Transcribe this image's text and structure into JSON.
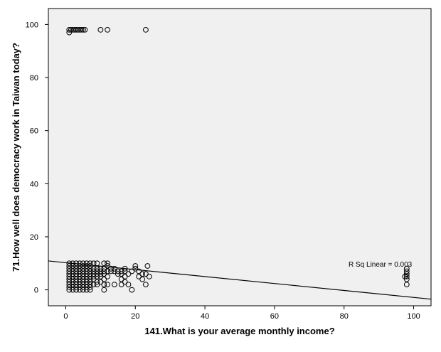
{
  "chart_data": {
    "type": "scatter",
    "xlabel": "141.What is your average monthly income?",
    "ylabel": "71.How well does democracy work in Taiwan today?",
    "xlim": [
      -5,
      105
    ],
    "ylim": [
      -6,
      106
    ],
    "x_ticks": [
      0,
      20,
      40,
      60,
      80,
      100
    ],
    "y_ticks": [
      0,
      20,
      40,
      60,
      80,
      100
    ],
    "grid": false,
    "legend": "none",
    "plot_background": "#f0f0f0",
    "marker_color": "#000000",
    "fit_line": {
      "x": [
        -5,
        105
      ],
      "y": [
        10.9,
        -3.5
      ]
    },
    "annotation": "R Sq Linear = 0.003",
    "points": [
      [
        1,
        98
      ],
      [
        1,
        97
      ],
      [
        1.5,
        98
      ],
      [
        2,
        98
      ],
      [
        2.5,
        98
      ],
      [
        3,
        98
      ],
      [
        3.5,
        98
      ],
      [
        4,
        98
      ],
      [
        4.5,
        98
      ],
      [
        5,
        98
      ],
      [
        5.5,
        98
      ],
      [
        10,
        98
      ],
      [
        12,
        98
      ],
      [
        23,
        98
      ],
      [
        1,
        0
      ],
      [
        1,
        1
      ],
      [
        1,
        2
      ],
      [
        1,
        3
      ],
      [
        1,
        4
      ],
      [
        1,
        5
      ],
      [
        1,
        6
      ],
      [
        1,
        7
      ],
      [
        1,
        8
      ],
      [
        1,
        9
      ],
      [
        1,
        10
      ],
      [
        2,
        0
      ],
      [
        2,
        1
      ],
      [
        2,
        2
      ],
      [
        2,
        3
      ],
      [
        2,
        4
      ],
      [
        2,
        5
      ],
      [
        2,
        6
      ],
      [
        2,
        7
      ],
      [
        2,
        8
      ],
      [
        2,
        9
      ],
      [
        2,
        10
      ],
      [
        3,
        0
      ],
      [
        3,
        1
      ],
      [
        3,
        2
      ],
      [
        3,
        3
      ],
      [
        3,
        4
      ],
      [
        3,
        5
      ],
      [
        3,
        6
      ],
      [
        3,
        7
      ],
      [
        3,
        8
      ],
      [
        3,
        9
      ],
      [
        3,
        10
      ],
      [
        4,
        0
      ],
      [
        4,
        1
      ],
      [
        4,
        2
      ],
      [
        4,
        3
      ],
      [
        4,
        4
      ],
      [
        4,
        5
      ],
      [
        4,
        6
      ],
      [
        4,
        7
      ],
      [
        4,
        8
      ],
      [
        4,
        9
      ],
      [
        4,
        10
      ],
      [
        5,
        0
      ],
      [
        5,
        1
      ],
      [
        5,
        2
      ],
      [
        5,
        3
      ],
      [
        5,
        4
      ],
      [
        5,
        5
      ],
      [
        5,
        6
      ],
      [
        5,
        7
      ],
      [
        5,
        8
      ],
      [
        5,
        9
      ],
      [
        5,
        10
      ],
      [
        6,
        0
      ],
      [
        6,
        1
      ],
      [
        6,
        2
      ],
      [
        6,
        3
      ],
      [
        6,
        4
      ],
      [
        6,
        5
      ],
      [
        6,
        6
      ],
      [
        6,
        7
      ],
      [
        6,
        8
      ],
      [
        6,
        9
      ],
      [
        6,
        10
      ],
      [
        7,
        0
      ],
      [
        7,
        1
      ],
      [
        7,
        2
      ],
      [
        7,
        3
      ],
      [
        7,
        4
      ],
      [
        7,
        5
      ],
      [
        7,
        6
      ],
      [
        7,
        7
      ],
      [
        7,
        8
      ],
      [
        7,
        9
      ],
      [
        7,
        10
      ],
      [
        8,
        2
      ],
      [
        8,
        4
      ],
      [
        8,
        5
      ],
      [
        8,
        6
      ],
      [
        8,
        7
      ],
      [
        8,
        8
      ],
      [
        8,
        10
      ],
      [
        9,
        2
      ],
      [
        9,
        3
      ],
      [
        9,
        5
      ],
      [
        9,
        6
      ],
      [
        9,
        7
      ],
      [
        9,
        8
      ],
      [
        9,
        10
      ],
      [
        10,
        3
      ],
      [
        10,
        5
      ],
      [
        10,
        6
      ],
      [
        10,
        7
      ],
      [
        10,
        8
      ],
      [
        11,
        0
      ],
      [
        11,
        2
      ],
      [
        11,
        4
      ],
      [
        11,
        6
      ],
      [
        11,
        7
      ],
      [
        11,
        8
      ],
      [
        11,
        10
      ],
      [
        12,
        2
      ],
      [
        12,
        5
      ],
      [
        12,
        7
      ],
      [
        12,
        9
      ],
      [
        12,
        10
      ],
      [
        13,
        7
      ],
      [
        13,
        8
      ],
      [
        14,
        2
      ],
      [
        14,
        7
      ],
      [
        14,
        8
      ],
      [
        15,
        6
      ],
      [
        15,
        7
      ],
      [
        16,
        2
      ],
      [
        16,
        4
      ],
      [
        16,
        6
      ],
      [
        16,
        7
      ],
      [
        17,
        3
      ],
      [
        17,
        5
      ],
      [
        17,
        7
      ],
      [
        17,
        8
      ],
      [
        18,
        2
      ],
      [
        18,
        6
      ],
      [
        19,
        0
      ],
      [
        19,
        7
      ],
      [
        20,
        8
      ],
      [
        20,
        9
      ],
      [
        21,
        5
      ],
      [
        21,
        7
      ],
      [
        22,
        4
      ],
      [
        22,
        6
      ],
      [
        23,
        2
      ],
      [
        23,
        6
      ],
      [
        24,
        5
      ],
      [
        23.5,
        9
      ],
      [
        98,
        2
      ],
      [
        98,
        4
      ],
      [
        98,
        5
      ],
      [
        98,
        6
      ],
      [
        98,
        7
      ],
      [
        98,
        8
      ],
      [
        97.5,
        5
      ]
    ]
  }
}
